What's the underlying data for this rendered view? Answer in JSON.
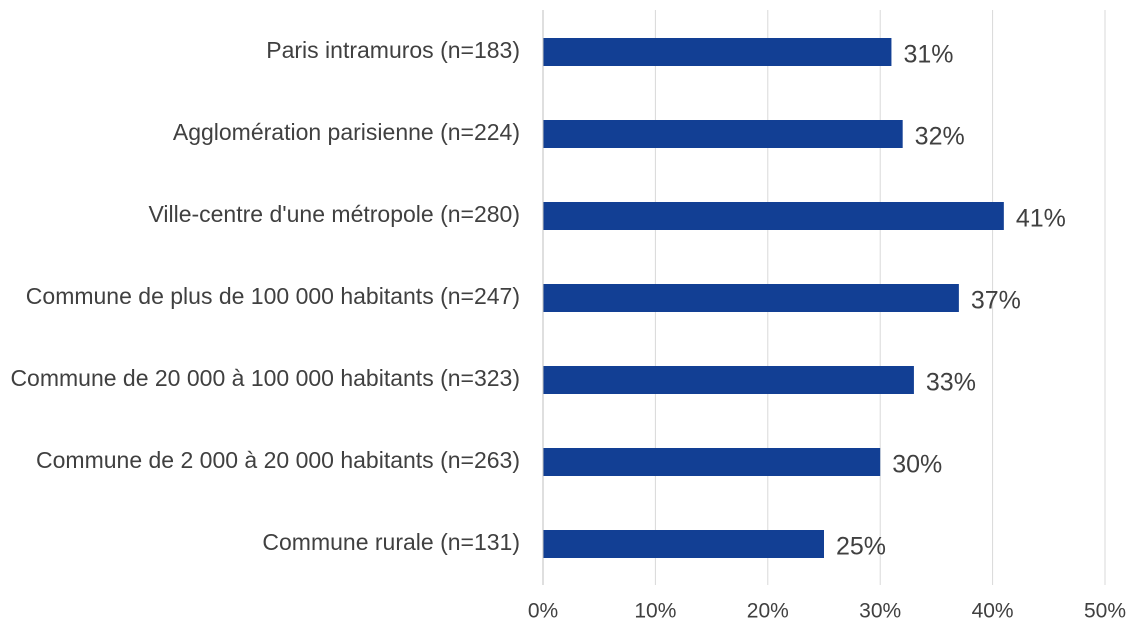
{
  "chart_data": {
    "type": "bar",
    "orientation": "horizontal",
    "categories": [
      "Paris intramuros (n=183)",
      "Agglomération parisienne (n=224)",
      "Ville-centre d'une métropole (n=280)",
      "Commune de plus de 100 000 habitants (n=247)",
      "Commune de 20 000 à 100 000 habitants (n=323)",
      "Commune de 2 000 à 20 000 habitants (n=263)",
      "Commune rurale (n=131)"
    ],
    "values": [
      31,
      32,
      41,
      37,
      33,
      30,
      25
    ],
    "value_labels": [
      "31%",
      "32%",
      "41%",
      "37%",
      "33%",
      "30%",
      "25%"
    ],
    "color": "#123f94",
    "xlim": [
      0,
      50
    ],
    "xticks": [
      {
        "value": 0,
        "label": "0%"
      },
      {
        "value": 10,
        "label": "10%"
      },
      {
        "value": 20,
        "label": "20%"
      },
      {
        "value": 30,
        "label": "30%"
      },
      {
        "value": 40,
        "label": "40%"
      },
      {
        "value": 50,
        "label": "50%"
      }
    ],
    "grid": true
  }
}
